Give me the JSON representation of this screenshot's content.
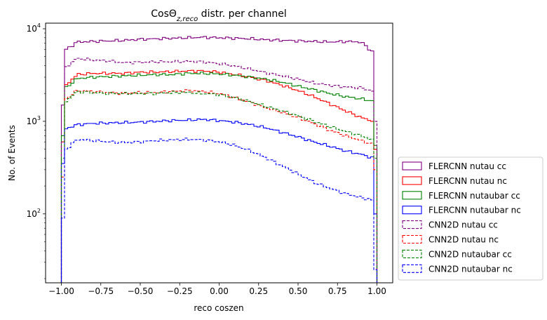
{
  "chart_data": {
    "type": "line",
    "title": "CosΘ",
    "title_sub": "z,reco",
    "title_suffix": " distr. per channel",
    "xlabel": "reco coszen",
    "ylabel": "No. of Events",
    "xlim": [
      -1.1,
      1.1
    ],
    "ylim": [
      18,
      11500
    ],
    "yscale": "log",
    "xticks": [
      -1.0,
      -0.75,
      -0.5,
      -0.25,
      0.0,
      0.25,
      0.5,
      0.75,
      1.0
    ],
    "xtick_labels": [
      "−1.00",
      "−0.75",
      "−0.50",
      "−0.25",
      "0.00",
      "0.25",
      "0.50",
      "0.75",
      "1.00"
    ],
    "yticks": [
      100,
      1000,
      10000
    ],
    "ytick_base": "10",
    "ytick_exps": [
      "2",
      "3",
      "4"
    ],
    "legend_position": "outside-right-bottom",
    "x": [
      -1.0,
      -0.9,
      -0.8,
      -0.7,
      -0.6,
      -0.5,
      -0.4,
      -0.3,
      -0.2,
      -0.1,
      0.0,
      0.1,
      0.2,
      0.3,
      0.4,
      0.5,
      0.6,
      0.7,
      0.8,
      0.9,
      0.98
    ],
    "series": [
      {
        "name": "FLERCNN nutau cc",
        "color": "#800080",
        "dashed": false,
        "edge_low": 1500,
        "edge_high": 500,
        "values": [
          5500,
          7200,
          7300,
          7400,
          7500,
          7700,
          7800,
          7900,
          8000,
          8100,
          8000,
          7900,
          7800,
          7600,
          7500,
          7400,
          7300,
          7200,
          7300,
          7200,
          5500
        ]
      },
      {
        "name": "FLERCNN nutau nc",
        "color": "#ff0000",
        "dashed": false,
        "edge_low": 600,
        "edge_high": 500,
        "values": [
          2200,
          3200,
          3300,
          3300,
          3300,
          3400,
          3400,
          3450,
          3500,
          3500,
          3400,
          3200,
          3000,
          2750,
          2450,
          2150,
          1850,
          1550,
          1300,
          1100,
          1000
        ]
      },
      {
        "name": "FLERCNN nutaubar cc",
        "color": "#008000",
        "dashed": false,
        "edge_low": 700,
        "edge_high": 550,
        "values": [
          2100,
          2900,
          3000,
          3050,
          3100,
          3150,
          3200,
          3200,
          3300,
          3300,
          3250,
          3150,
          3000,
          2850,
          2650,
          2400,
          2200,
          2000,
          1850,
          1750,
          1650
        ]
      },
      {
        "name": "FLERCNN nutaubar nc",
        "color": "#0000ff",
        "dashed": false,
        "edge_low": 350,
        "edge_high": 100,
        "values": [
          800,
          920,
          950,
          960,
          970,
          980,
          1000,
          1020,
          1030,
          1050,
          1020,
          980,
          920,
          850,
          760,
          680,
          600,
          540,
          480,
          440,
          400
        ]
      },
      {
        "name": "CNN2D nutau cc",
        "color": "#800080",
        "dashed": true,
        "edge_low": 600,
        "edge_high": 1000,
        "values": [
          3500,
          4800,
          4600,
          4500,
          4300,
          4350,
          4400,
          4400,
          4450,
          4400,
          4200,
          3950,
          3650,
          3350,
          3100,
          2850,
          2600,
          2450,
          2350,
          2300,
          2100
        ]
      },
      {
        "name": "CNN2D nutau nc",
        "color": "#ff0000",
        "dashed": true,
        "edge_low": 250,
        "edge_high": 300,
        "values": [
          1600,
          2150,
          2100,
          2050,
          2000,
          2050,
          2050,
          2100,
          2150,
          2100,
          2000,
          1800,
          1600,
          1400,
          1250,
          1100,
          950,
          800,
          700,
          620,
          560
        ]
      },
      {
        "name": "CNN2D nutaubar cc",
        "color": "#008000",
        "dashed": true,
        "edge_low": 400,
        "edge_high": 400,
        "values": [
          1500,
          2100,
          2050,
          2000,
          2000,
          2000,
          2000,
          2050,
          2050,
          2000,
          1950,
          1800,
          1620,
          1450,
          1300,
          1150,
          1000,
          880,
          780,
          700,
          620
        ]
      },
      {
        "name": "CNN2D nutaubar nc",
        "color": "#0000ff",
        "dashed": true,
        "edge_low": 90,
        "edge_high": 25,
        "values": [
          450,
          640,
          620,
          600,
          590,
          600,
          620,
          630,
          640,
          630,
          600,
          550,
          480,
          400,
          330,
          270,
          220,
          190,
          165,
          150,
          140
        ]
      }
    ]
  }
}
